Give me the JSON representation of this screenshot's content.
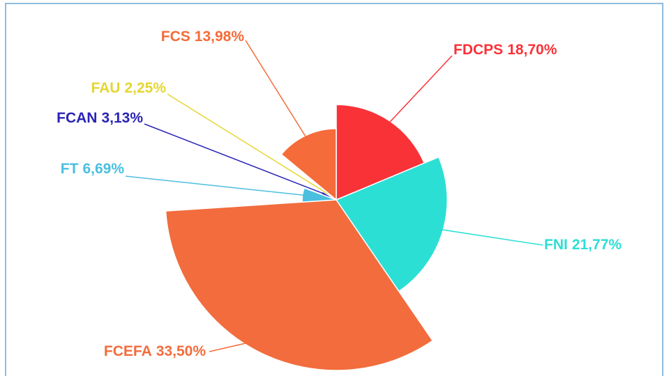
{
  "chart_data": {
    "type": "rose",
    "categories": [
      "FDCPS",
      "FNI",
      "FCEFA",
      "FT",
      "FCAN",
      "FAU",
      "FCS"
    ],
    "values": [
      18.7,
      21.77,
      33.5,
      6.69,
      3.13,
      2.25,
      13.98
    ],
    "value_labels": [
      "18,70%",
      "21,77%",
      "33,50%",
      "6,69%",
      "3,13%",
      "2,25%",
      "13,98%"
    ],
    "colors": [
      "#f93238",
      "#2cdfd5",
      "#f26c3d",
      "#4bbfe0",
      "#2a24b6",
      "#e5d632",
      "#f56b39"
    ]
  }
}
